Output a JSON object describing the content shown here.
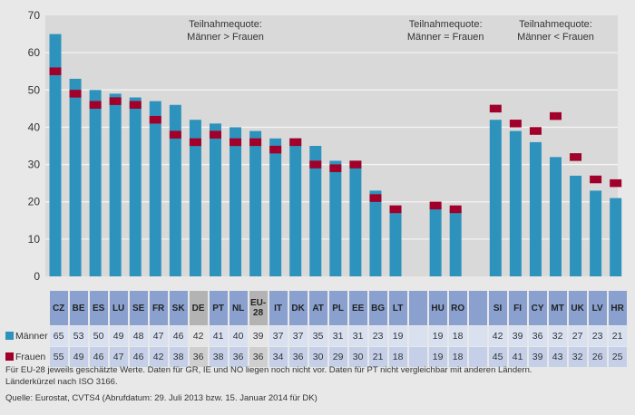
{
  "chart_data": {
    "type": "bar",
    "title": "",
    "xlabel": "",
    "ylabel": "",
    "ylim": [
      0,
      70
    ],
    "yticks": [
      0,
      10,
      20,
      30,
      40,
      50,
      60,
      70
    ],
    "grid": true,
    "categories": [
      "CZ",
      "BE",
      "ES",
      "LU",
      "SE",
      "FR",
      "SK",
      "DE",
      "PT",
      "NL",
      "EU-28",
      "IT",
      "DK",
      "AT",
      "PL",
      "EE",
      "BG",
      "LT",
      "",
      "HU",
      "RO",
      "",
      "SI",
      "FI",
      "CY",
      "MT",
      "UK",
      "LV",
      "HR"
    ],
    "category_lines": [
      [
        "CZ"
      ],
      [
        "BE"
      ],
      [
        "ES"
      ],
      [
        "LU"
      ],
      [
        "SE"
      ],
      [
        "FR"
      ],
      [
        "SK"
      ],
      [
        "DE"
      ],
      [
        "PT"
      ],
      [
        "NL"
      ],
      [
        "EU-",
        "28"
      ],
      [
        "IT"
      ],
      [
        "DK"
      ],
      [
        "AT"
      ],
      [
        "PL"
      ],
      [
        "EE"
      ],
      [
        "BG"
      ],
      [
        "LT"
      ],
      [
        ""
      ],
      [
        "HU"
      ],
      [
        "RO"
      ],
      [
        ""
      ],
      [
        "SI"
      ],
      [
        "FI"
      ],
      [
        "CY"
      ],
      [
        "MT"
      ],
      [
        "UK"
      ],
      [
        "LV"
      ],
      [
        "HR"
      ]
    ],
    "highlighted": [
      "DE",
      "EU-28"
    ],
    "series": [
      {
        "name": "Männer",
        "color": "#2e93bc",
        "style": "bar",
        "values": [
          65,
          53,
          50,
          49,
          48,
          47,
          46,
          42,
          41,
          40,
          39,
          37,
          37,
          35,
          31,
          31,
          23,
          19,
          null,
          19,
          18,
          null,
          42,
          39,
          36,
          32,
          27,
          23,
          21
        ]
      },
      {
        "name": "Frauen",
        "color": "#a0002a",
        "style": "marker",
        "values": [
          55,
          49,
          46,
          47,
          46,
          42,
          38,
          36,
          38,
          36,
          36,
          34,
          36,
          30,
          29,
          30,
          21,
          18,
          null,
          19,
          18,
          null,
          45,
          41,
          39,
          43,
          32,
          26,
          25
        ]
      }
    ],
    "annotations": [
      {
        "lines": [
          "Teilnahmequote:",
          "Männer > Frauen"
        ],
        "over": "SK-IT"
      },
      {
        "lines": [
          "Teilnahmequote:",
          "Männer = Frauen"
        ],
        "over": "HU-RO"
      },
      {
        "lines": [
          "Teilnahmequote:",
          "Männer < Frauen"
        ],
        "over": "CY-UK"
      }
    ],
    "legend": "table-left"
  },
  "table": {
    "rows": [
      {
        "label": "Männer",
        "series": 0
      },
      {
        "label": "Frauen",
        "series": 1
      }
    ]
  },
  "notes": {
    "line1": "Für EU-28 jeweils geschätzte Werte. Daten für GR, IE und NO liegen noch nicht vor. Daten für PT nicht vergleichbar mit anderen Ländern.",
    "line2": "Länderkürzel nach ISO 3166.",
    "source": "Quelle: Eurostat, CVTS4 (Abrufdatum: 29. Juli 2013 bzw. 15. Januar 2014 für DK)"
  },
  "colors": {
    "plot_bg": "#d9d9d9",
    "page_bg": "#e8e8e8",
    "grid": "#f4f4f4",
    "men": "#2e93bc",
    "women": "#a0002a"
  }
}
